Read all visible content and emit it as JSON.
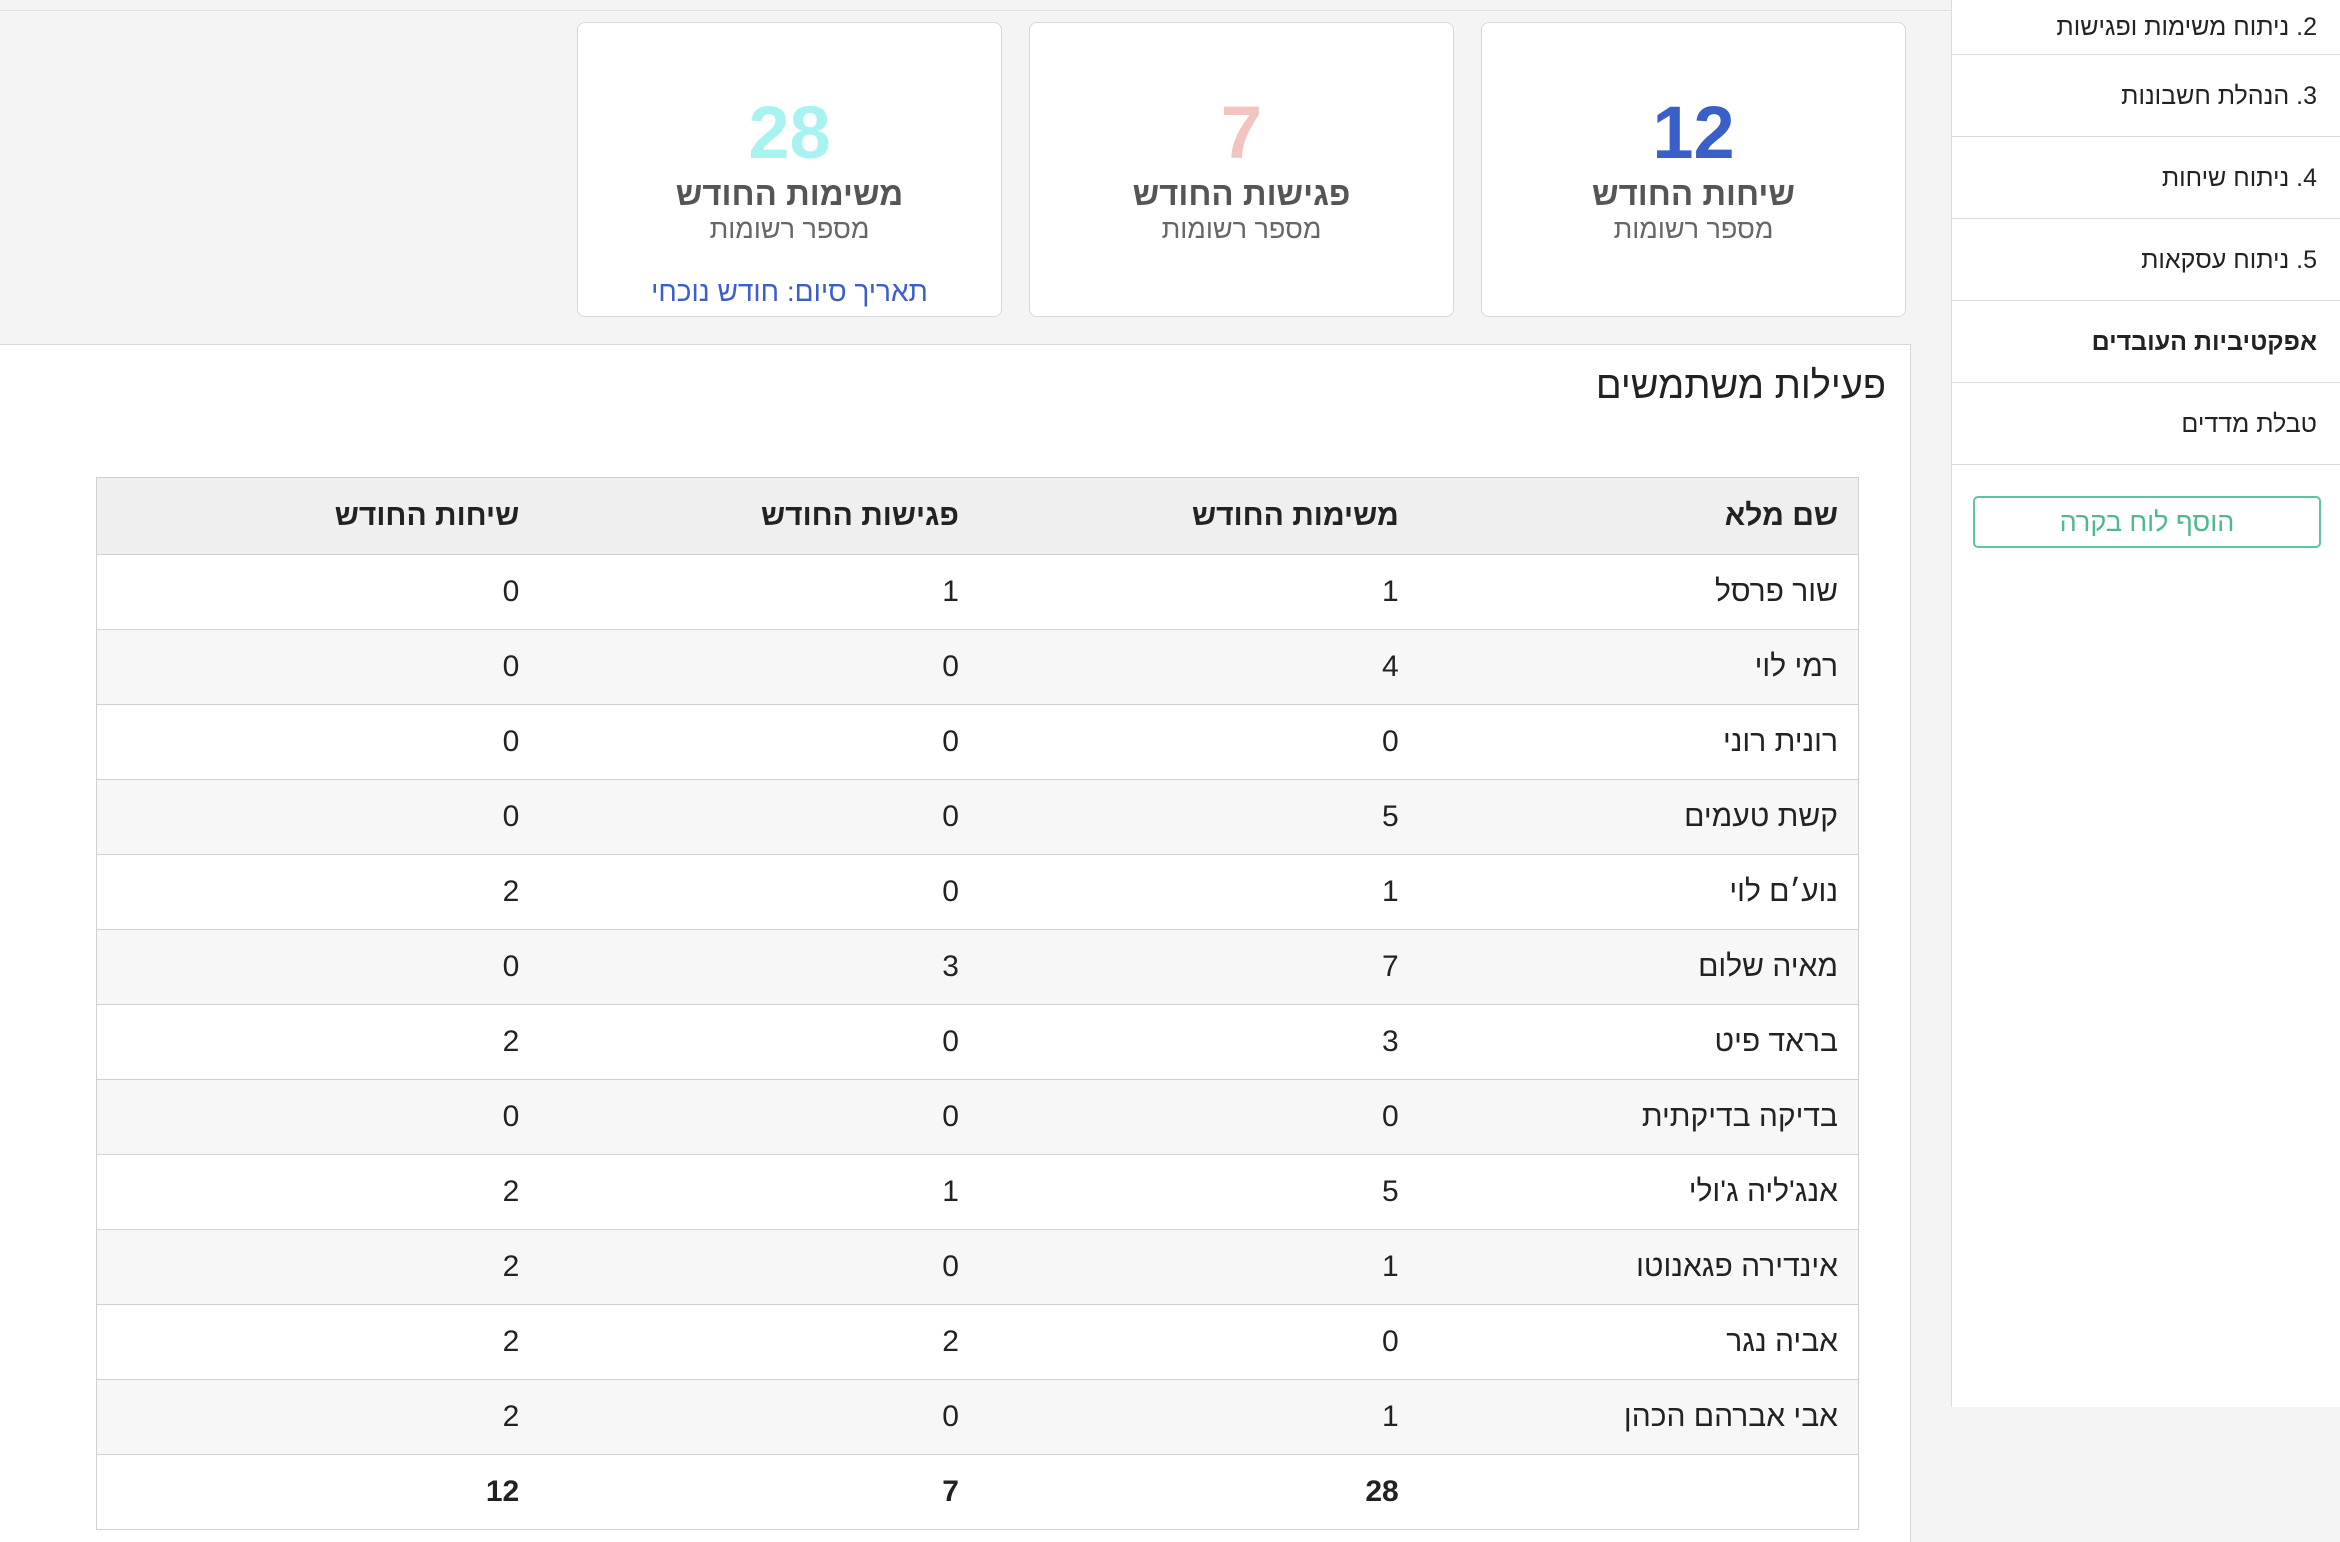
{
  "sidebar": {
    "items": [
      {
        "label": "2. ניתוח משימות ופגישות"
      },
      {
        "label": "3. הנהלת חשבונות"
      },
      {
        "label": "4. ניתוח שיחות"
      },
      {
        "label": "5. ניתוח עסקאות"
      },
      {
        "label": "אפקטיביות העובדים"
      },
      {
        "label": "טבלת מדדים"
      }
    ],
    "add_board_label": "הוסף לוח בקרה"
  },
  "cards": [
    {
      "number": "12",
      "title": "שיחות החודש",
      "subtitle": "מספר רשומות",
      "color": "#3a5fc8"
    },
    {
      "number": "7",
      "title": "פגישות החודש",
      "subtitle": "מספר רשומות",
      "color": "#f2c4c0"
    },
    {
      "number": "28",
      "title": "משימות החודש",
      "subtitle": "מספר רשומות",
      "color": "#a8f3f0",
      "link": "תאריך סיום: חודש נוכחי"
    }
  ],
  "panel": {
    "title": "פעילות משתמשים"
  },
  "table": {
    "headers": [
      "שם מלא",
      "משימות החודש",
      "פגישות החודש",
      "שיחות החודש"
    ],
    "rows": [
      [
        "שור פרסל",
        "1",
        "1",
        "0"
      ],
      [
        "רמי לוי",
        "4",
        "0",
        "0"
      ],
      [
        "רונית רוני",
        "0",
        "0",
        "0"
      ],
      [
        "קשת טעמים",
        "5",
        "0",
        "0"
      ],
      [
        "נוע׳ם לוי",
        "1",
        "0",
        "2"
      ],
      [
        "מאיה שלום",
        "7",
        "3",
        "0"
      ],
      [
        "בראד פיט",
        "3",
        "0",
        "2"
      ],
      [
        "בדיקה בדיקתית",
        "0",
        "0",
        "0"
      ],
      [
        "אנג'ליה ג'ולי",
        "5",
        "1",
        "2"
      ],
      [
        "אינדירה פגאנוטו",
        "1",
        "0",
        "2"
      ],
      [
        "אביה נגר",
        "0",
        "2",
        "2"
      ],
      [
        "אבי אברהם הכהן",
        "1",
        "0",
        "2"
      ]
    ],
    "totals": [
      "",
      "28",
      "7",
      "12"
    ]
  }
}
